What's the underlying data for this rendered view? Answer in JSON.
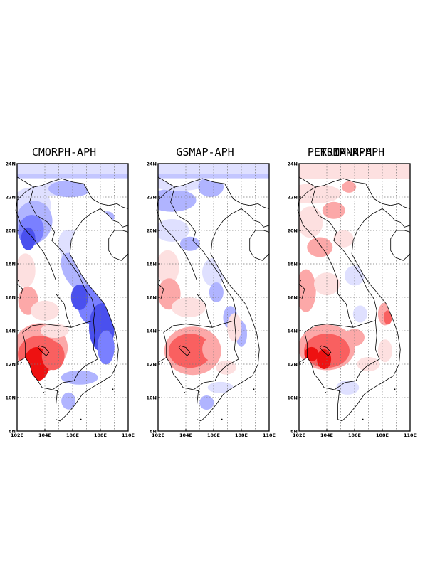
{
  "panels": [
    {
      "title": "CMORPH-APH",
      "overlay_title": "",
      "scheme": "cmorph"
    },
    {
      "title": "GSMAP-APH",
      "overlay_title": "",
      "scheme": "gsmap"
    },
    {
      "title": "PERSIANN-APH",
      "overlay_title": "TRMM-APH",
      "scheme": "persiann"
    }
  ],
  "axes": {
    "lon_ticks": [
      "102E",
      "104E",
      "106E",
      "108E",
      "110E"
    ],
    "lat_ticks": [
      "8N",
      "10N",
      "12N",
      "14N",
      "16N",
      "18N",
      "20N",
      "22N",
      "24N"
    ],
    "lon_range": [
      102,
      110
    ],
    "lat_range": [
      8,
      24
    ],
    "grid": "dotted"
  },
  "colors": {
    "strong_red": "#ee1111",
    "red": "#f96060",
    "light_red": "#fca8a8",
    "pale_red": "#fde0e0",
    "pale_blue": "#dfe0ff",
    "light_blue": "#b0b4ff",
    "blue": "#7a80ff",
    "strong_blue": "#4a50ee",
    "land_outline": "#000000"
  }
}
